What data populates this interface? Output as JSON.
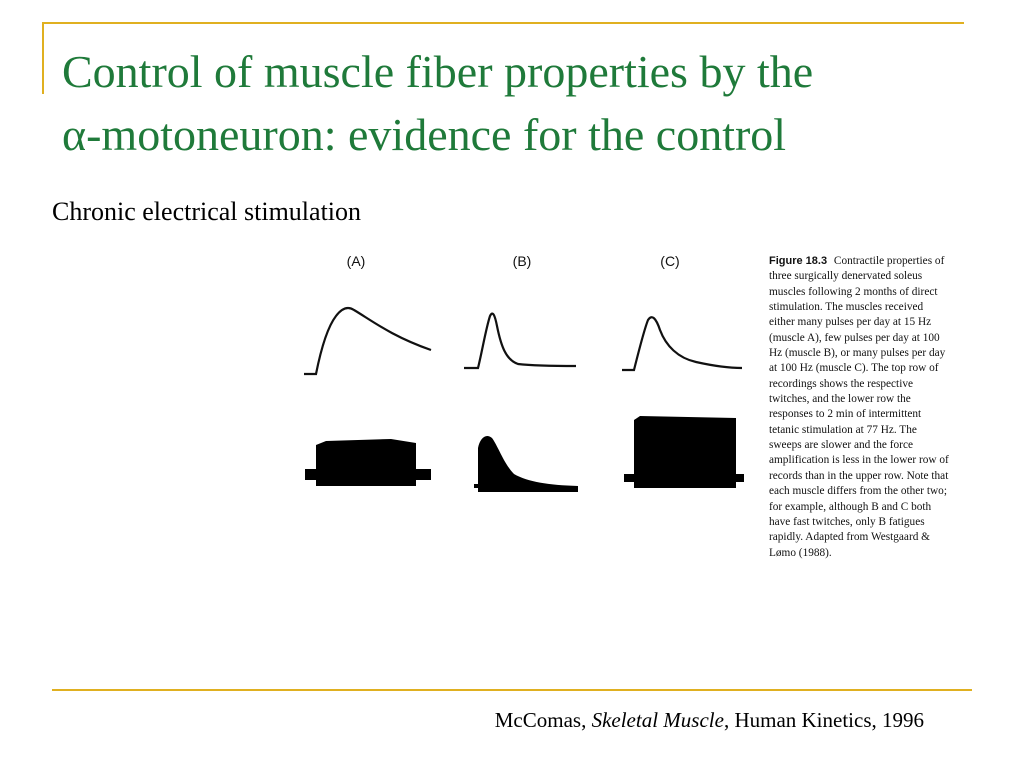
{
  "slide": {
    "title_line1": "Control of muscle fiber properties by the",
    "title_line2": "α-motoneuron: evidence for the control",
    "subtitle": "Chronic electrical stimulation"
  },
  "figure": {
    "panels": [
      {
        "label": "(A)"
      },
      {
        "label": "(B)"
      },
      {
        "label": "(C)"
      }
    ],
    "caption_label": "Figure 18.3",
    "caption_text": "Contractile properties of three surgically denervated soleus muscles following 2 months of direct stimulation. The muscles received either many pulses per day at 15 Hz (muscle A), few pulses per day at 100 Hz (muscle B), or many pulses per day at 100 Hz (muscle C). The top row of recordings shows the respective twitches, and the lower row the responses to 2 min of intermittent tetanic stimulation at 77 Hz. The sweeps are slower and the force amplification is less in the lower row of records than in the upper row. Note that each muscle differs from the other two; for example, although B and C both have fast twitches, only B fatigues rapidly. Adapted from Westgaard & Lømo (1988)."
  },
  "citation": {
    "author": "McComas,",
    "book": "Skeletal Muscle",
    "publisher": ", Human Kinetics, 1996"
  },
  "colors": {
    "accent_rule": "#e0b020",
    "title": "#1f7a3a"
  }
}
